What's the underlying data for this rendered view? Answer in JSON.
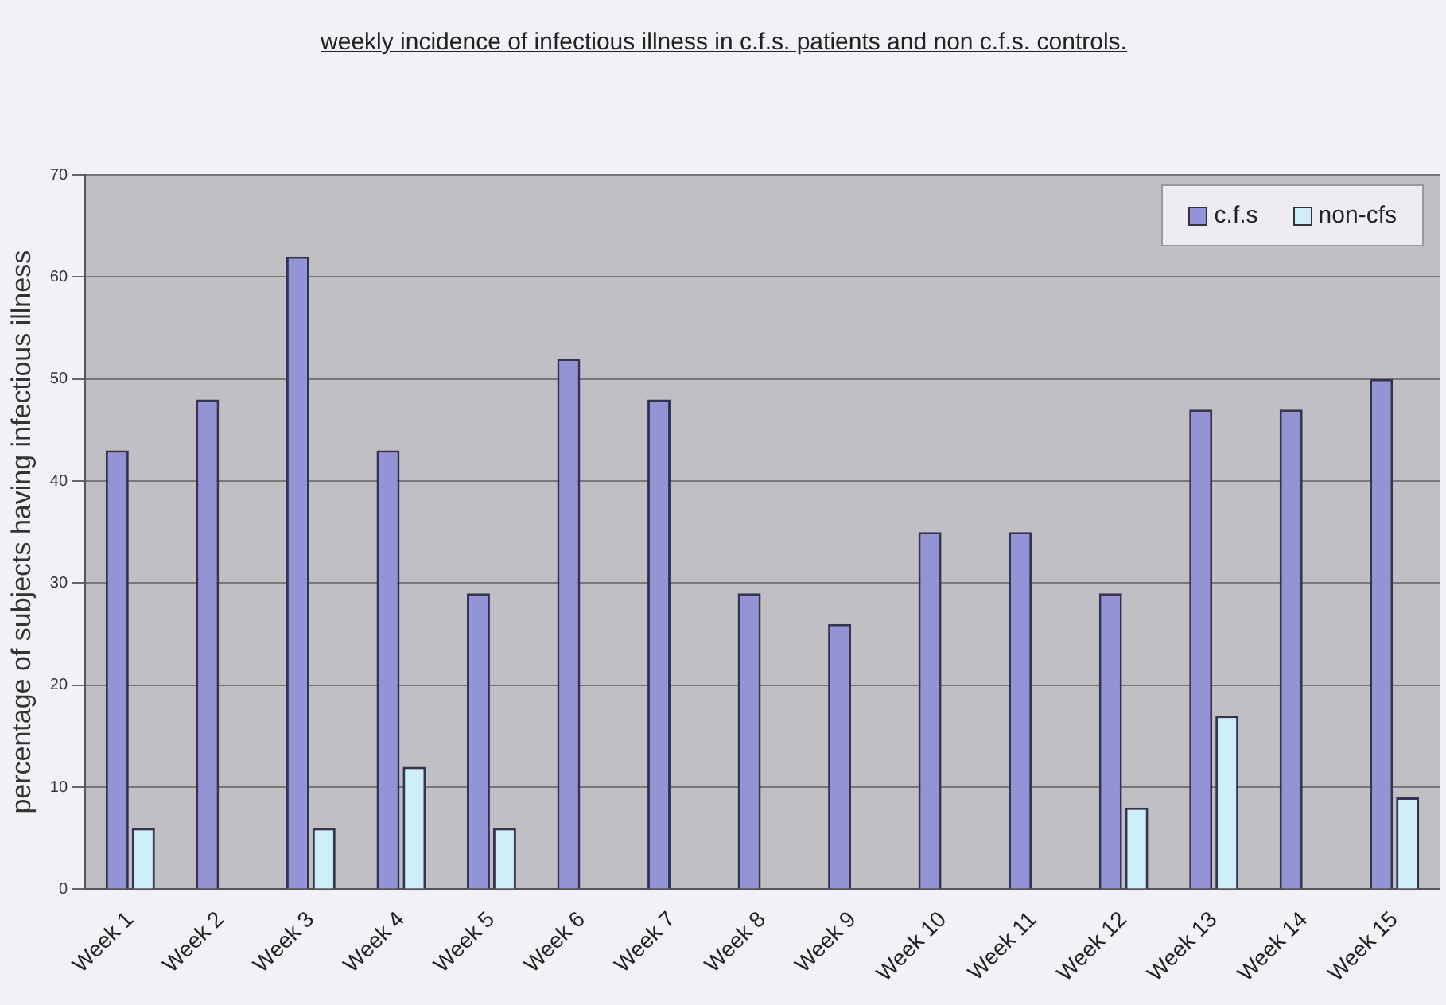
{
  "chart_data": {
    "type": "bar",
    "title": "weekly incidence of infectious illness in c.f.s. patients and non c.f.s. controls.",
    "ylabel": "percentage of subjects having infectious illness",
    "categories": [
      "Week 1",
      "Week 2",
      "Week 3",
      "Week 4",
      "Week 5",
      "Week 6",
      "Week 7",
      "Week 8",
      "Week 9",
      "Week 10",
      "Week 11",
      "Week 12",
      "Week 13",
      "Week 14",
      "Week 15"
    ],
    "series": [
      {
        "name": "c.f.s",
        "color": "#9393d6",
        "values": [
          43,
          48,
          62,
          43,
          29,
          52,
          48,
          29,
          26,
          35,
          35,
          29,
          47,
          47,
          50
        ]
      },
      {
        "name": "non-cfs",
        "color": "#cdeef6",
        "values": [
          6,
          0,
          6,
          12,
          6,
          0,
          0,
          0,
          0,
          0,
          0,
          8,
          17,
          0,
          9
        ]
      }
    ],
    "ylim": [
      0,
      70
    ],
    "yticks": [
      0,
      10,
      20,
      30,
      40,
      50,
      60,
      70
    ],
    "grid": "y",
    "legend": "top right"
  }
}
